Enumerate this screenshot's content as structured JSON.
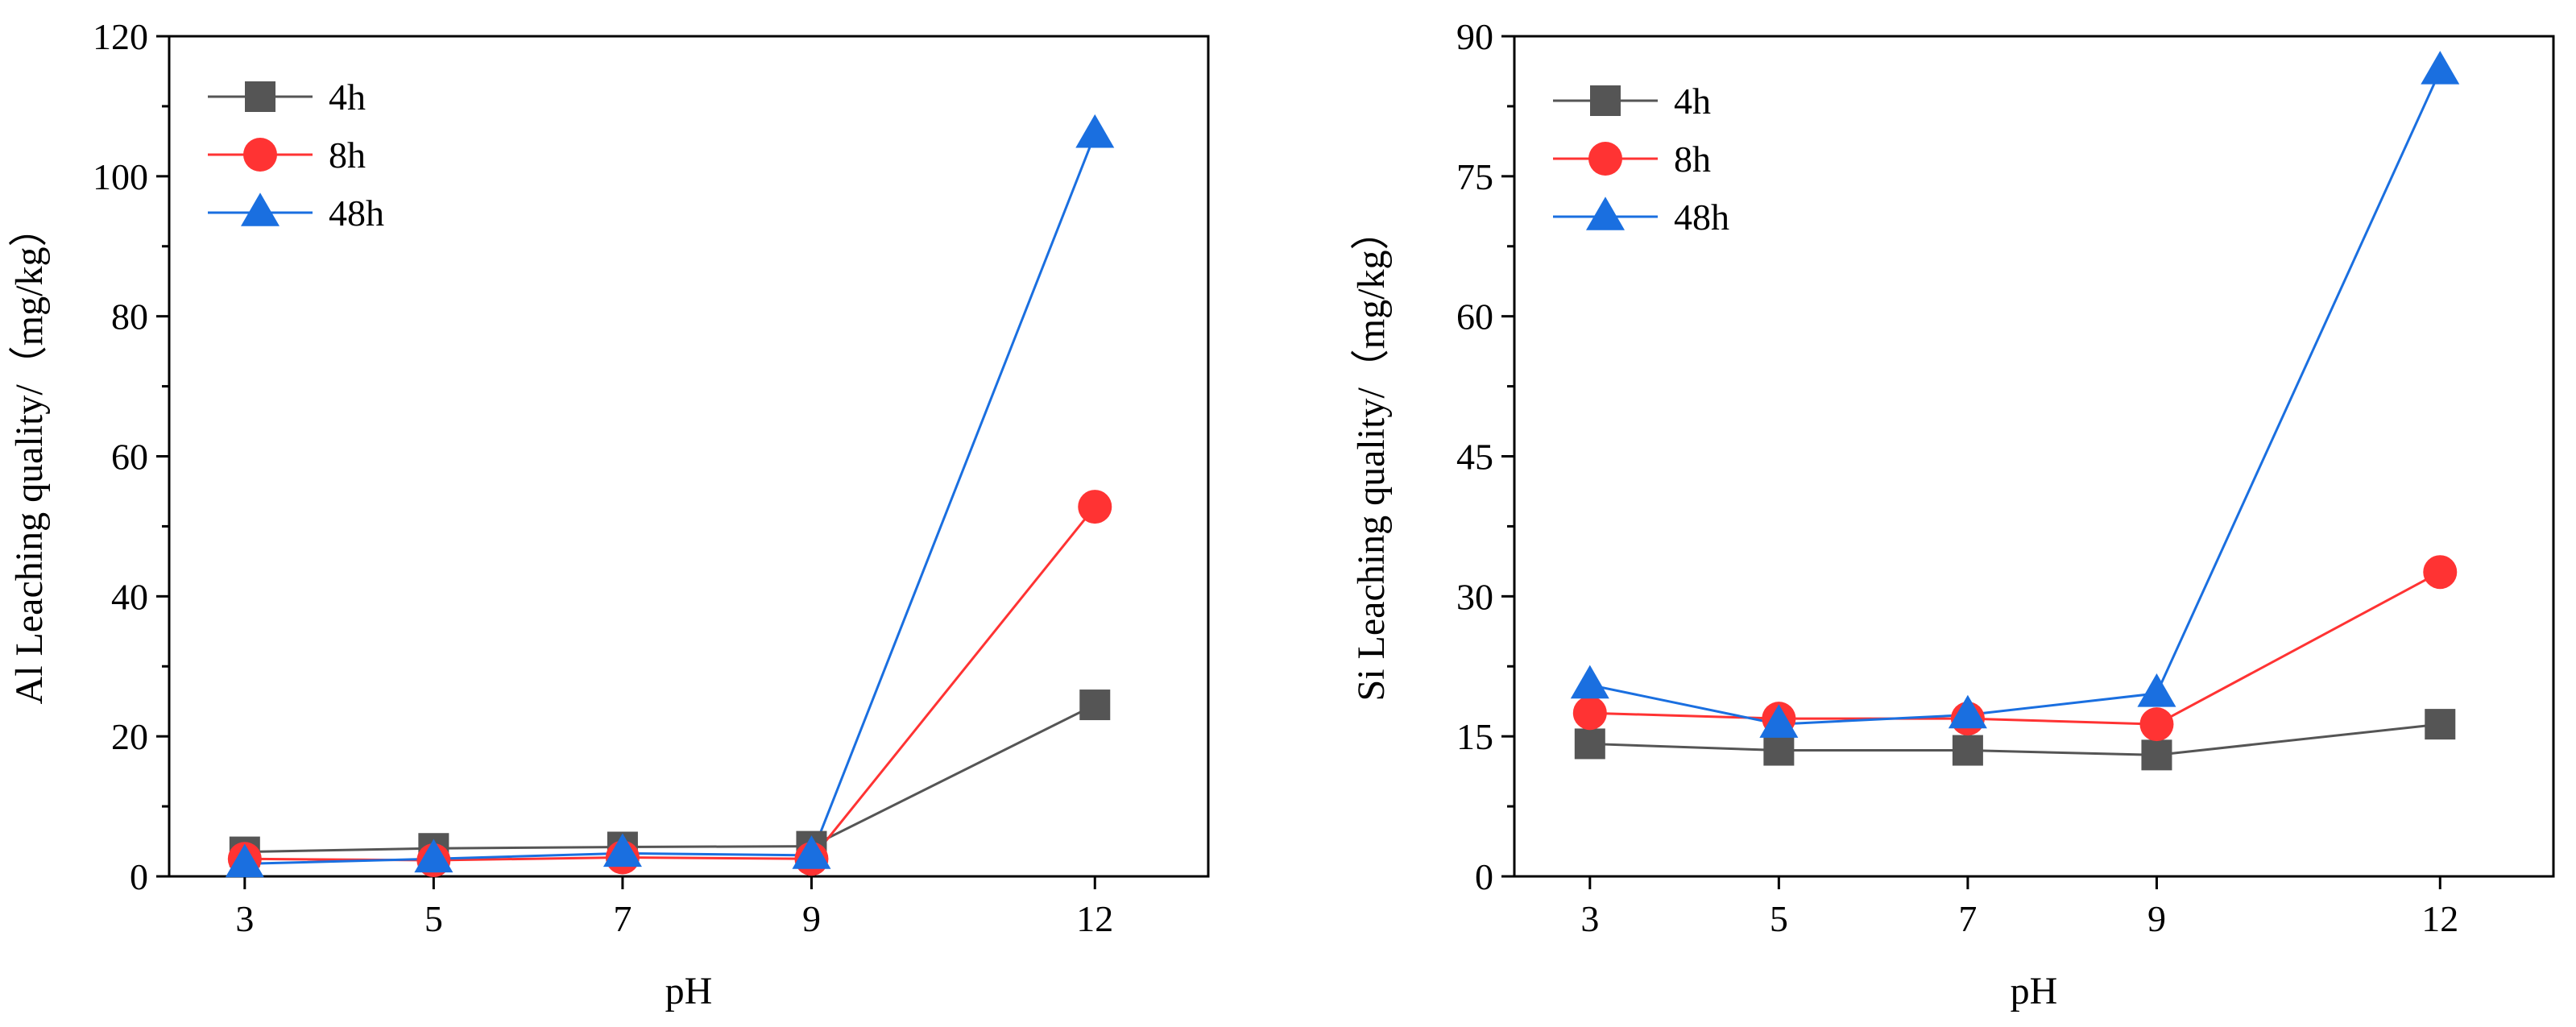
{
  "chart_data": [
    {
      "type": "line",
      "title": "",
      "xlabel": "pH",
      "ylabel": "Al Leaching quality/（mg/kg）",
      "categories": [
        "3",
        "5",
        "7",
        "9",
        "12"
      ],
      "xlim": [
        2.2,
        13.2
      ],
      "ylim": [
        0,
        120
      ],
      "yticks": [
        0,
        20,
        40,
        60,
        80,
        100,
        120
      ],
      "grid": false,
      "legend_position": "top-left",
      "series": [
        {
          "name": "4h",
          "color": "#555555",
          "marker": "square",
          "x": [
            3,
            5,
            7,
            9,
            12
          ],
          "values": [
            3.5,
            4.0,
            4.2,
            4.3,
            24.5
          ]
        },
        {
          "name": "8h",
          "color": "#ff3333",
          "marker": "circle",
          "x": [
            3,
            5,
            7,
            9,
            12
          ],
          "values": [
            2.5,
            2.3,
            2.7,
            2.5,
            52.8
          ]
        },
        {
          "name": "48h",
          "color": "#1a6fe0",
          "marker": "triangle",
          "x": [
            3,
            5,
            7,
            9,
            12
          ],
          "values": [
            1.8,
            2.5,
            3.3,
            3.0,
            106.0
          ]
        }
      ]
    },
    {
      "type": "line",
      "title": "",
      "xlabel": "pH",
      "ylabel": "Si Leaching quality/（mg/kg）",
      "categories": [
        "3",
        "5",
        "7",
        "9",
        "12"
      ],
      "xlim": [
        2.2,
        13.2
      ],
      "ylim": [
        0,
        90
      ],
      "yticks": [
        0,
        15,
        30,
        45,
        60,
        75,
        90
      ],
      "grid": false,
      "legend_position": "top-left",
      "series": [
        {
          "name": "4h",
          "color": "#555555",
          "marker": "square",
          "x": [
            3,
            5,
            7,
            9,
            12
          ],
          "values": [
            14.2,
            13.5,
            13.5,
            13.0,
            16.3
          ]
        },
        {
          "name": "8h",
          "color": "#ff3333",
          "marker": "circle",
          "x": [
            3,
            5,
            7,
            9,
            12
          ],
          "values": [
            17.5,
            16.9,
            16.9,
            16.3,
            32.6
          ]
        },
        {
          "name": "48h",
          "color": "#1a6fe0",
          "marker": "triangle",
          "x": [
            3,
            5,
            7,
            9,
            12
          ],
          "values": [
            20.5,
            16.3,
            17.3,
            19.6,
            86.3
          ]
        }
      ]
    }
  ]
}
